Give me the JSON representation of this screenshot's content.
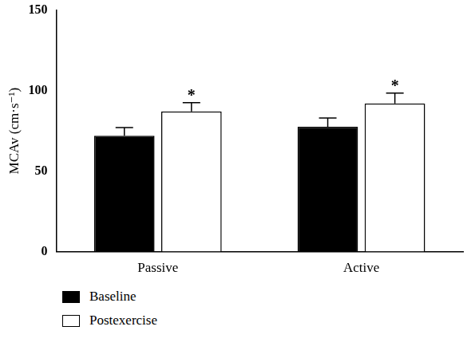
{
  "chart_data": {
    "type": "bar",
    "categories": [
      "Passive",
      "Active"
    ],
    "series": [
      {
        "name": "Baseline",
        "color": "#000000",
        "values": [
          72,
          77.5
        ],
        "errors": [
          5,
          5.5
        ]
      },
      {
        "name": "Postexercise",
        "color": "#ffffff",
        "values": [
          87,
          92
        ],
        "errors": [
          5.5,
          6.5
        ]
      }
    ],
    "y_label": "MCAv (cm·s⁻¹)",
    "ylim": [
      0,
      150
    ],
    "yticks": [
      0,
      50,
      100,
      150
    ],
    "grid": false,
    "legend": "bottom-left",
    "annotations": [
      {
        "text": "*",
        "category": "Passive",
        "series": "Postexercise"
      },
      {
        "text": "*",
        "category": "Active",
        "series": "Postexercise"
      }
    ]
  }
}
